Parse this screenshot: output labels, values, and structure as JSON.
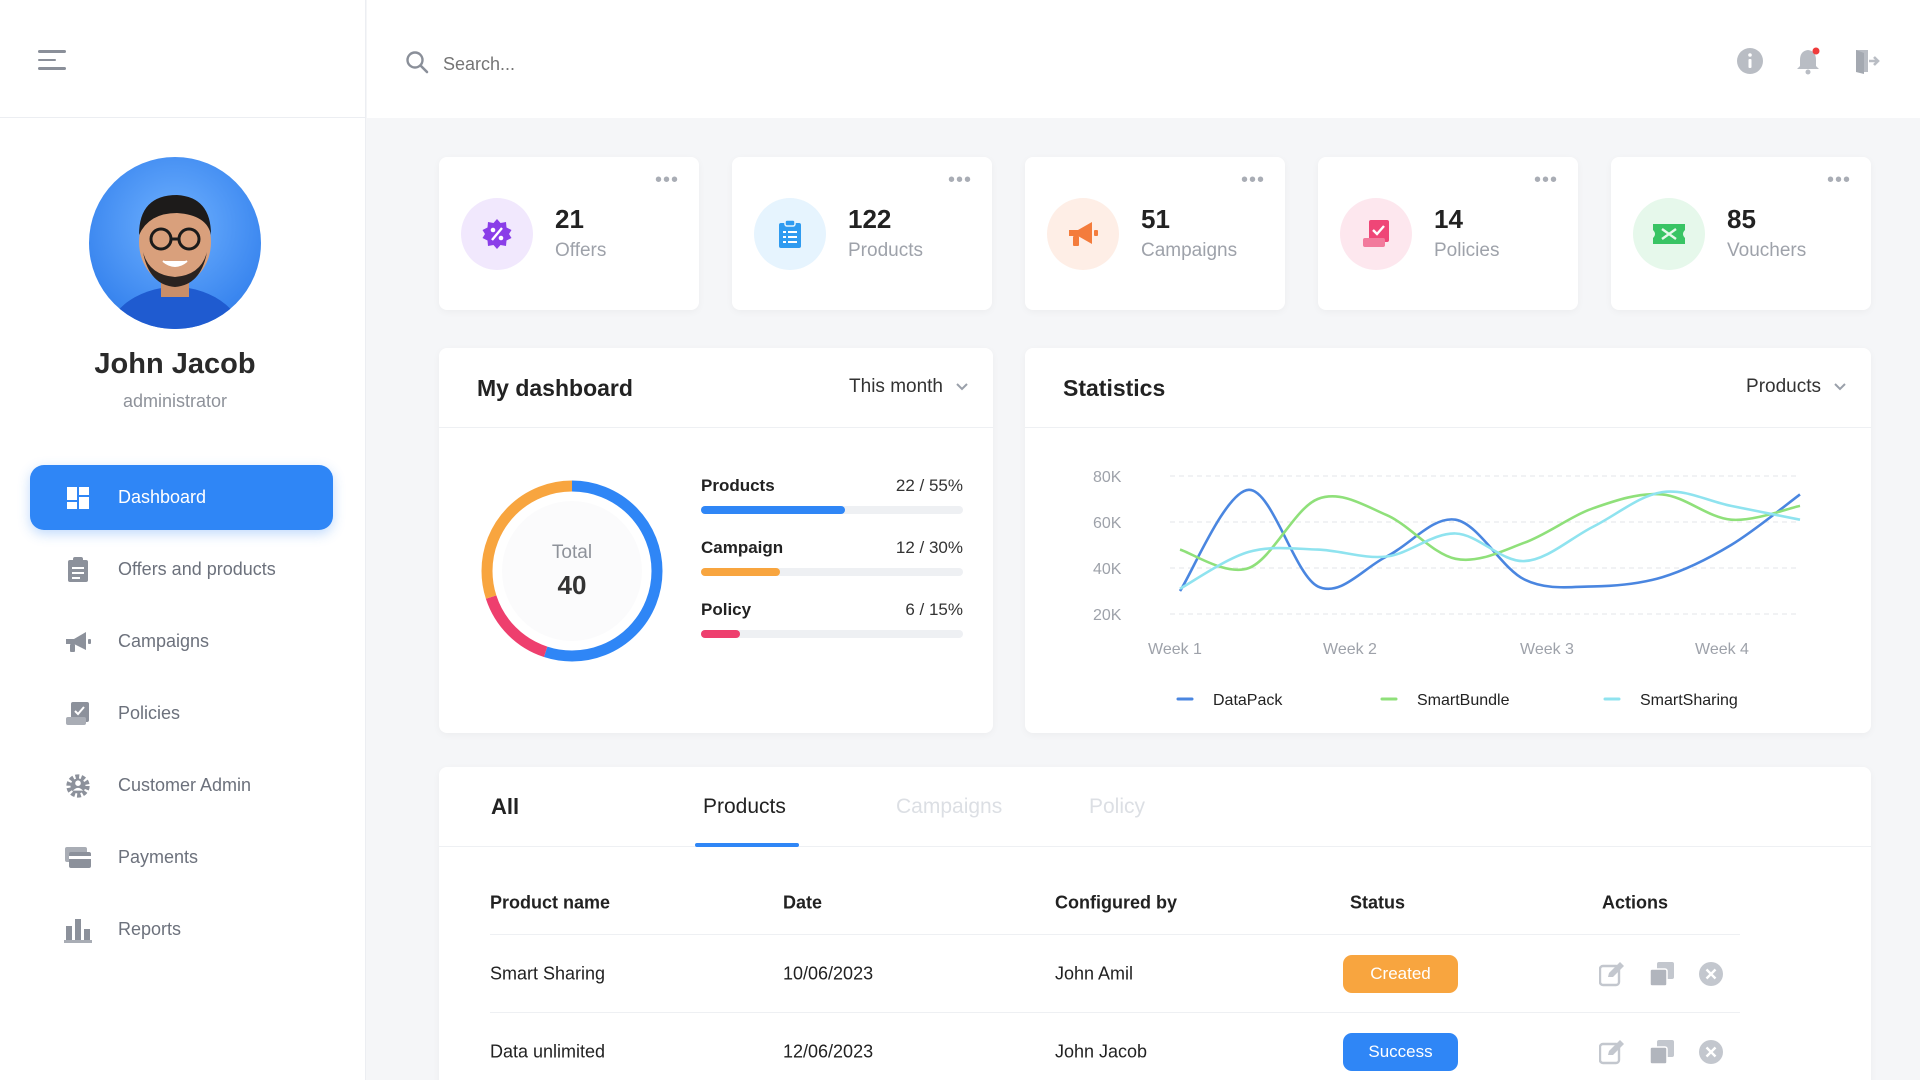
{
  "header": {
    "search_placeholder": "Search..."
  },
  "profile": {
    "name": "John Jacob",
    "role": "administrator"
  },
  "sidebar": {
    "items": [
      {
        "label": "Dashboard",
        "icon": "dashboard-icon",
        "active": true
      },
      {
        "label": "Offers and products",
        "icon": "clipboard-icon"
      },
      {
        "label": "Campaigns",
        "icon": "megaphone-icon"
      },
      {
        "label": "Policies",
        "icon": "policy-icon"
      },
      {
        "label": "Customer Admin",
        "icon": "gear-icon"
      },
      {
        "label": "Payments",
        "icon": "payment-card-icon"
      },
      {
        "label": "Reports",
        "icon": "bar-chart-icon"
      }
    ]
  },
  "stats": [
    {
      "value": "21",
      "label": "Offers",
      "icon": "percent-badge-icon",
      "color": "#8a3ee8",
      "bg": "#f1e8fd"
    },
    {
      "value": "122",
      "label": "Products",
      "icon": "clipboard-icon",
      "color": "#2f9bf0",
      "bg": "#e6f4fe"
    },
    {
      "value": "51",
      "label": "Campaigns",
      "icon": "megaphone-icon",
      "color": "#f47c3c",
      "bg": "#feeee6"
    },
    {
      "value": "14",
      "label": "Policies",
      "icon": "policy-icon",
      "color": "#ef4677",
      "bg": "#fde7ee"
    },
    {
      "value": "85",
      "label": "Vouchers",
      "icon": "ticket-icon",
      "color": "#39c464",
      "bg": "#e6f8eb"
    }
  ],
  "dashboard": {
    "title": "My dashboard",
    "period": "This month",
    "total_label": "Total",
    "total_value": "40",
    "items": [
      {
        "name": "Products",
        "value": "22 / 55%",
        "percent": 55,
        "color": "#2f86f6"
      },
      {
        "name": "Campaign",
        "value": "12 / 30%",
        "percent": 30,
        "color": "#f8a53f"
      },
      {
        "name": "Policy",
        "value": "6 / 15%",
        "percent": 15,
        "color": "#ee3f6e"
      }
    ]
  },
  "statistics": {
    "title": "Statistics",
    "filter": "Products"
  },
  "chart_data": {
    "type": "line",
    "x_labels": [
      "Week 1",
      "Week 2",
      "Week 3",
      "Week 4"
    ],
    "y_ticks": [
      "80K",
      "60K",
      "40K",
      "20K"
    ],
    "ylim": [
      20000,
      80000
    ],
    "grid": true,
    "legend_position": "bottom",
    "series": [
      {
        "name": "DataPack",
        "color": "#4a86e0",
        "values": [
          30000,
          74000,
          32000,
          45000,
          61000,
          35000,
          32000,
          36000,
          50000,
          72000
        ]
      },
      {
        "name": "SmartBundle",
        "color": "#8fe07a",
        "values": [
          48000,
          40000,
          70000,
          63000,
          44000,
          51000,
          66000,
          72000,
          61000,
          67000
        ]
      },
      {
        "name": "SmartSharing",
        "color": "#8fe3ef",
        "values": [
          31000,
          47000,
          48000,
          45000,
          55000,
          43000,
          58000,
          73000,
          67000,
          61000
        ]
      }
    ]
  },
  "table": {
    "tabs": [
      "All",
      "Products",
      "Campaigns",
      "Policy"
    ],
    "active_tab": "Products",
    "columns": [
      "Product name",
      "Date",
      "Configured by",
      "Status",
      "Actions"
    ],
    "rows": [
      {
        "name": "Smart Sharing",
        "date": "10/06/2023",
        "by": "John Amil",
        "status": "Created",
        "status_color": "#f8a53f"
      },
      {
        "name": "Data unlimited",
        "date": "12/06/2023",
        "by": "John Jacob",
        "status": "Success",
        "status_color": "#2f86f6"
      }
    ]
  }
}
